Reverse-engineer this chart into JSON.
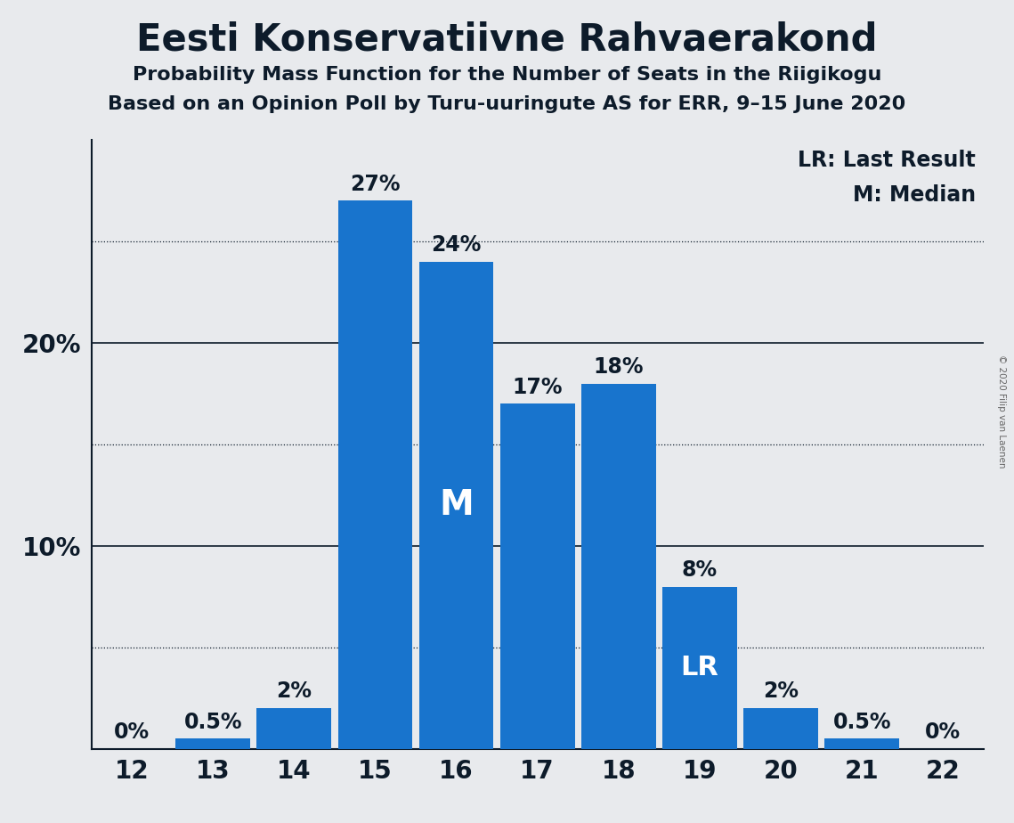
{
  "title": "Eesti Konservatiivne Rahvaerakond",
  "subtitle1": "Probability Mass Function for the Number of Seats in the Riigikogu",
  "subtitle2": "Based on an Opinion Poll by Turu-uuringute AS for ERR, 9–15 June 2020",
  "copyright": "© 2020 Filip van Laenen",
  "seats": [
    12,
    13,
    14,
    15,
    16,
    17,
    18,
    19,
    20,
    21,
    22
  ],
  "values": [
    0.0,
    0.5,
    2.0,
    27.0,
    24.0,
    17.0,
    18.0,
    8.0,
    2.0,
    0.5,
    0.0
  ],
  "labels": [
    "0%",
    "0.5%",
    "2%",
    "27%",
    "24%",
    "17%",
    "18%",
    "8%",
    "2%",
    "0.5%",
    "0%"
  ],
  "bar_color": "#1874CD",
  "median_seat": 16,
  "lr_seat": 19,
  "legend_lr": "LR: Last Result",
  "legend_m": "M: Median",
  "background_color": "#E8EAED",
  "solid_gridlines": [
    10,
    20
  ],
  "dotted_gridlines": [
    5,
    15,
    25
  ],
  "ylim": [
    0,
    30
  ],
  "title_fontsize": 30,
  "subtitle_fontsize": 16,
  "tick_fontsize": 20,
  "bar_label_fontsize": 17,
  "legend_fontsize": 17,
  "axis_color": "#0D1B2A",
  "grid_color": "#0D1B2A",
  "bar_width": 0.92
}
